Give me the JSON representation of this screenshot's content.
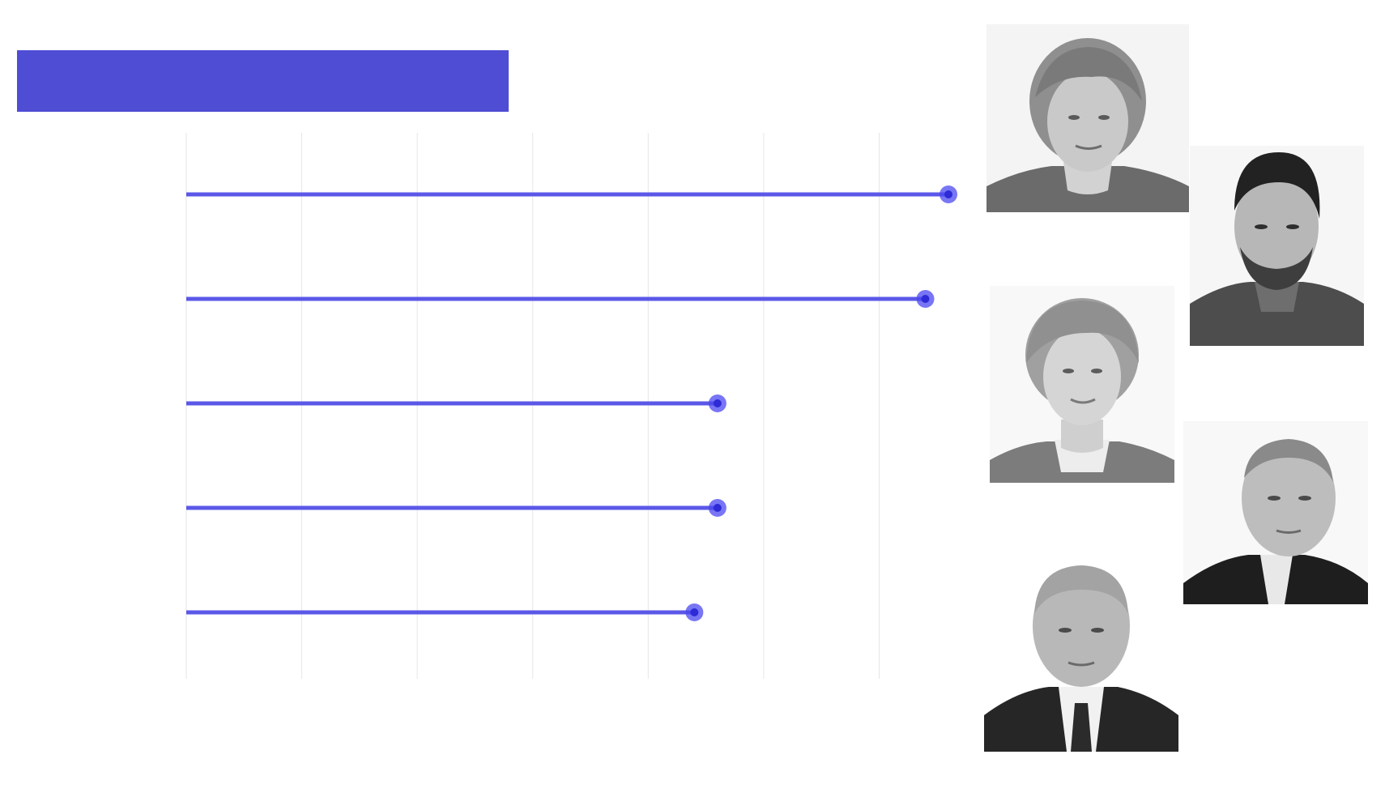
{
  "banner": {
    "color": "#4f4dd4"
  },
  "chart_data": {
    "type": "lollipop",
    "orientation": "horizontal",
    "title": "",
    "xlabel": "",
    "ylabel": "",
    "grid": true,
    "x_range": [
      0,
      66
    ],
    "gridline_values": [
      0,
      10,
      20,
      30,
      40,
      50,
      60
    ],
    "series": [
      {
        "name": "values",
        "values": [
          66,
          64,
          46,
          46,
          44
        ]
      }
    ],
    "colors": {
      "line": "#5b58e8",
      "dot": "#4b48f0",
      "grid": "#e6e6e6"
    }
  },
  "portraits": [
    {
      "icon": "portrait-woman-blonde-bob-icon"
    },
    {
      "icon": "portrait-man-dark-hair-beard-icon"
    },
    {
      "icon": "portrait-woman-blonde-updo-icon"
    },
    {
      "icon": "portrait-man-balding-suit-icon"
    },
    {
      "icon": "portrait-man-bald-suit-tie-icon"
    }
  ]
}
